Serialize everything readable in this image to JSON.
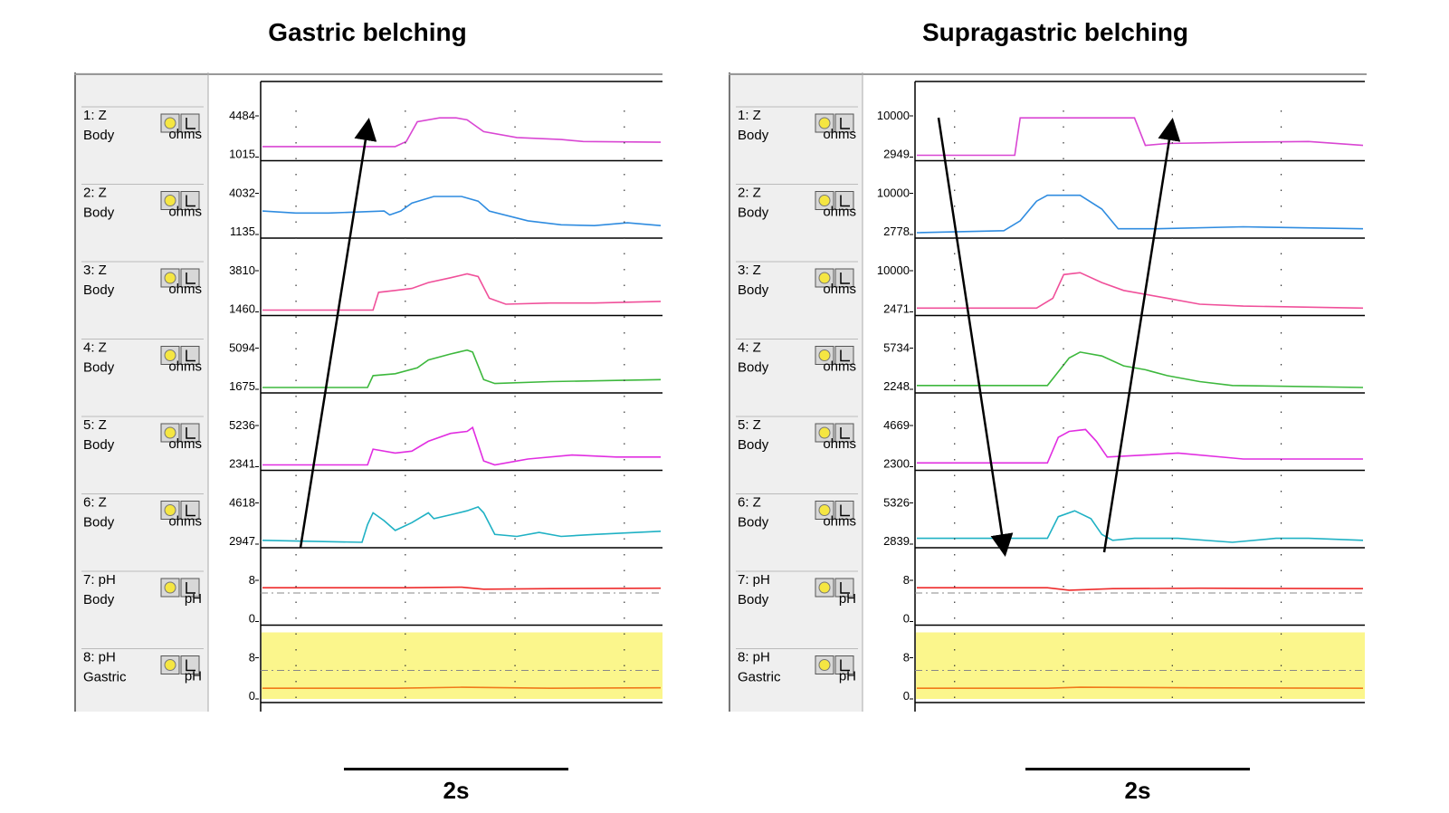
{
  "panels": [
    {
      "title": "Gastric belching",
      "scale_label": "2s",
      "channels": [
        {
          "id": "1: Z",
          "site": "Body",
          "unit": "ohms",
          "ymax": "4484",
          "ymin": "1015",
          "color": "#d946d3"
        },
        {
          "id": "2: Z",
          "site": "Body",
          "unit": "ohms",
          "ymax": "4032",
          "ymin": "1135",
          "color": "#2f8ce0"
        },
        {
          "id": "3: Z",
          "site": "Body",
          "unit": "ohms",
          "ymax": "3810",
          "ymin": "1460",
          "color": "#f0509a"
        },
        {
          "id": "4: Z",
          "site": "Body",
          "unit": "ohms",
          "ymax": "5094",
          "ymin": "1675",
          "color": "#3db83d"
        },
        {
          "id": "5: Z",
          "site": "Body",
          "unit": "ohms",
          "ymax": "5236",
          "ymin": "2341",
          "color": "#e12ee1"
        },
        {
          "id": "6: Z",
          "site": "Body",
          "unit": "ohms",
          "ymax": "4618",
          "ymin": "2947",
          "color": "#1fb1c4"
        },
        {
          "id": "7: pH",
          "site": "Body",
          "unit": "pH",
          "ymax": "8",
          "ymin": "0",
          "color": "#ee2b2b"
        },
        {
          "id": "8: pH",
          "site": "Gastric",
          "unit": "pH",
          "ymax": "8",
          "ymin": "0",
          "color": "#f07a1a"
        }
      ]
    },
    {
      "title": "Supragastric belching",
      "scale_label": "2s",
      "channels": [
        {
          "id": "1: Z",
          "site": "Body",
          "unit": "ohms",
          "ymax": "10000",
          "ymin": "2949",
          "color": "#d946d3"
        },
        {
          "id": "2: Z",
          "site": "Body",
          "unit": "ohms",
          "ymax": "10000",
          "ymin": "2778",
          "color": "#2f8ce0"
        },
        {
          "id": "3: Z",
          "site": "Body",
          "unit": "ohms",
          "ymax": "10000",
          "ymin": "2471",
          "color": "#f0509a"
        },
        {
          "id": "4: Z",
          "site": "Body",
          "unit": "ohms",
          "ymax": "5734",
          "ymin": "2248",
          "color": "#3db83d"
        },
        {
          "id": "5: Z",
          "site": "Body",
          "unit": "ohms",
          "ymax": "4669",
          "ymin": "2300",
          "color": "#e12ee1"
        },
        {
          "id": "6: Z",
          "site": "Body",
          "unit": "ohms",
          "ymax": "5326",
          "ymin": "2839",
          "color": "#1fb1c4"
        },
        {
          "id": "7: pH",
          "site": "Body",
          "unit": "pH",
          "ymax": "8",
          "ymin": "0",
          "color": "#ee2b2b"
        },
        {
          "id": "8: pH",
          "site": "Gastric",
          "unit": "pH",
          "ymax": "8",
          "ymin": "0",
          "color": "#f07a1a"
        }
      ]
    }
  ],
  "chart_data": [
    {
      "type": "line",
      "title": "Gastric belching",
      "x_unit": "s",
      "x_range": [
        0,
        3.6
      ],
      "series": [
        {
          "name": "1: Z",
          "points": [
            [
              0,
              0.22
            ],
            [
              1.2,
              0.22
            ],
            [
              1.3,
              0.35
            ],
            [
              1.4,
              0.85
            ],
            [
              1.6,
              0.95
            ],
            [
              1.75,
              0.95
            ],
            [
              1.85,
              0.9
            ],
            [
              2.0,
              0.6
            ],
            [
              2.3,
              0.45
            ],
            [
              2.7,
              0.4
            ],
            [
              2.9,
              0.35
            ],
            [
              3.6,
              0.33
            ]
          ]
        },
        {
          "name": "2: Z",
          "points": [
            [
              0,
              0.55
            ],
            [
              0.3,
              0.5
            ],
            [
              0.6,
              0.5
            ],
            [
              1.1,
              0.55
            ],
            [
              1.15,
              0.45
            ],
            [
              1.25,
              0.55
            ],
            [
              1.35,
              0.75
            ],
            [
              1.55,
              0.92
            ],
            [
              1.8,
              0.92
            ],
            [
              1.95,
              0.8
            ],
            [
              2.05,
              0.55
            ],
            [
              2.4,
              0.3
            ],
            [
              2.7,
              0.2
            ],
            [
              3.0,
              0.18
            ],
            [
              3.3,
              0.25
            ],
            [
              3.6,
              0.18
            ]
          ]
        },
        {
          "name": "3: Z",
          "points": [
            [
              0,
              0.0
            ],
            [
              1.0,
              0.0
            ],
            [
              1.05,
              0.45
            ],
            [
              1.2,
              0.5
            ],
            [
              1.35,
              0.55
            ],
            [
              1.5,
              0.7
            ],
            [
              1.7,
              0.82
            ],
            [
              1.85,
              0.92
            ],
            [
              1.95,
              0.85
            ],
            [
              2.05,
              0.3
            ],
            [
              2.2,
              0.15
            ],
            [
              2.6,
              0.18
            ],
            [
              3.0,
              0.18
            ],
            [
              3.6,
              0.22
            ]
          ]
        },
        {
          "name": "4: Z",
          "points": [
            [
              0,
              0.0
            ],
            [
              0.95,
              0.0
            ],
            [
              1.0,
              0.3
            ],
            [
              1.2,
              0.35
            ],
            [
              1.4,
              0.5
            ],
            [
              1.5,
              0.7
            ],
            [
              1.7,
              0.85
            ],
            [
              1.85,
              0.95
            ],
            [
              1.9,
              0.9
            ],
            [
              2.0,
              0.2
            ],
            [
              2.1,
              0.1
            ],
            [
              2.6,
              0.15
            ],
            [
              3.2,
              0.18
            ],
            [
              3.6,
              0.2
            ]
          ]
        },
        {
          "name": "5: Z",
          "points": [
            [
              0,
              0.0
            ],
            [
              0.95,
              0.0
            ],
            [
              1.0,
              0.4
            ],
            [
              1.2,
              0.3
            ],
            [
              1.35,
              0.35
            ],
            [
              1.5,
              0.6
            ],
            [
              1.7,
              0.8
            ],
            [
              1.85,
              0.85
            ],
            [
              1.9,
              0.95
            ],
            [
              2.0,
              0.1
            ],
            [
              2.1,
              0.0
            ],
            [
              2.4,
              0.15
            ],
            [
              2.8,
              0.25
            ],
            [
              3.2,
              0.2
            ],
            [
              3.6,
              0.2
            ]
          ]
        },
        {
          "name": "6: Z",
          "points": [
            [
              0,
              0.05
            ],
            [
              0.9,
              0.0
            ],
            [
              0.95,
              0.45
            ],
            [
              1.0,
              0.75
            ],
            [
              1.1,
              0.55
            ],
            [
              1.2,
              0.3
            ],
            [
              1.35,
              0.5
            ],
            [
              1.5,
              0.75
            ],
            [
              1.55,
              0.6
            ],
            [
              1.7,
              0.7
            ],
            [
              1.85,
              0.8
            ],
            [
              1.95,
              0.9
            ],
            [
              2.0,
              0.75
            ],
            [
              2.1,
              0.2
            ],
            [
              2.3,
              0.15
            ],
            [
              2.5,
              0.25
            ],
            [
              2.7,
              0.15
            ],
            [
              3.0,
              0.2
            ],
            [
              3.6,
              0.28
            ]
          ]
        },
        {
          "name": "7: pH",
          "points": [
            [
              0,
              6.5
            ],
            [
              1.3,
              6.5
            ],
            [
              1.8,
              6.6
            ],
            [
              2.0,
              6.2
            ],
            [
              2.6,
              6.3
            ],
            [
              3.6,
              6.4
            ]
          ]
        },
        {
          "name": "8: pH",
          "points": [
            [
              0,
              1.8
            ],
            [
              1.2,
              1.8
            ],
            [
              1.8,
              2.0
            ],
            [
              2.6,
              1.8
            ],
            [
              3.6,
              1.9
            ]
          ]
        }
      ]
    },
    {
      "type": "line",
      "title": "Supragastric belching",
      "x_unit": "s",
      "x_range": [
        0,
        4.1
      ],
      "series": [
        {
          "name": "1: Z",
          "points": [
            [
              0,
              0.0
            ],
            [
              0.9,
              0.0
            ],
            [
              0.95,
              0.95
            ],
            [
              2.0,
              0.95
            ],
            [
              2.1,
              0.25
            ],
            [
              2.3,
              0.3
            ],
            [
              3.0,
              0.33
            ],
            [
              3.6,
              0.35
            ],
            [
              4.1,
              0.25
            ]
          ]
        },
        {
          "name": "2: Z",
          "points": [
            [
              0,
              0.0
            ],
            [
              0.8,
              0.05
            ],
            [
              0.95,
              0.3
            ],
            [
              1.1,
              0.8
            ],
            [
              1.2,
              0.95
            ],
            [
              1.5,
              0.95
            ],
            [
              1.7,
              0.6
            ],
            [
              1.85,
              0.1
            ],
            [
              2.2,
              0.1
            ],
            [
              3.0,
              0.15
            ],
            [
              4.1,
              0.1
            ]
          ]
        },
        {
          "name": "3: Z",
          "points": [
            [
              0,
              0.05
            ],
            [
              1.1,
              0.05
            ],
            [
              1.25,
              0.3
            ],
            [
              1.35,
              0.9
            ],
            [
              1.5,
              0.95
            ],
            [
              1.7,
              0.7
            ],
            [
              1.9,
              0.5
            ],
            [
              2.3,
              0.3
            ],
            [
              2.6,
              0.15
            ],
            [
              3.0,
              0.1
            ],
            [
              4.1,
              0.05
            ]
          ]
        },
        {
          "name": "4: Z",
          "points": [
            [
              0,
              0.05
            ],
            [
              1.2,
              0.05
            ],
            [
              1.3,
              0.4
            ],
            [
              1.4,
              0.75
            ],
            [
              1.5,
              0.9
            ],
            [
              1.7,
              0.8
            ],
            [
              1.9,
              0.55
            ],
            [
              2.1,
              0.45
            ],
            [
              2.3,
              0.3
            ],
            [
              2.6,
              0.15
            ],
            [
              2.9,
              0.05
            ],
            [
              4.1,
              0.0
            ]
          ]
        },
        {
          "name": "5: Z",
          "points": [
            [
              0,
              0.05
            ],
            [
              1.2,
              0.05
            ],
            [
              1.3,
              0.7
            ],
            [
              1.4,
              0.85
            ],
            [
              1.55,
              0.9
            ],
            [
              1.65,
              0.6
            ],
            [
              1.75,
              0.2
            ],
            [
              2.1,
              0.25
            ],
            [
              2.4,
              0.3
            ],
            [
              3.0,
              0.15
            ],
            [
              4.1,
              0.15
            ]
          ]
        },
        {
          "name": "6: Z",
          "points": [
            [
              0,
              0.1
            ],
            [
              0.7,
              0.1
            ],
            [
              1.2,
              0.1
            ],
            [
              1.3,
              0.65
            ],
            [
              1.45,
              0.8
            ],
            [
              1.6,
              0.6
            ],
            [
              1.7,
              0.2
            ],
            [
              1.8,
              0.05
            ],
            [
              2.0,
              0.1
            ],
            [
              2.4,
              0.1
            ],
            [
              2.9,
              0.0
            ],
            [
              3.3,
              0.1
            ],
            [
              3.6,
              0.1
            ],
            [
              4.1,
              0.05
            ]
          ]
        },
        {
          "name": "7: pH",
          "points": [
            [
              0,
              6.5
            ],
            [
              1.2,
              6.5
            ],
            [
              1.4,
              6.0
            ],
            [
              1.8,
              6.3
            ],
            [
              2.6,
              6.4
            ],
            [
              4.1,
              6.3
            ]
          ]
        },
        {
          "name": "8: pH",
          "points": [
            [
              0,
              1.8
            ],
            [
              1.2,
              1.8
            ],
            [
              1.5,
              2.0
            ],
            [
              2.5,
              1.9
            ],
            [
              4.1,
              1.8
            ]
          ]
        }
      ]
    }
  ]
}
